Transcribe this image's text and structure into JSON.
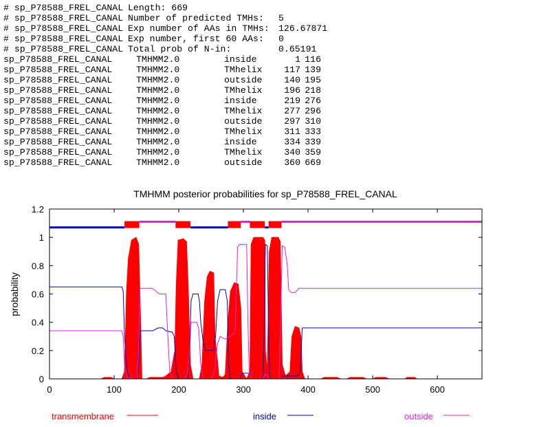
{
  "summary": [
    {
      "prefix": "# sp_P78588_FREL_CANAL",
      "label": "Length: 669",
      "value": ""
    },
    {
      "prefix": "# sp_P78588_FREL_CANAL",
      "label": "Number of predicted TMHs:",
      "value": "5"
    },
    {
      "prefix": "# sp_P78588_FREL_CANAL",
      "label": "Exp number of AAs in TMHs:",
      "value": "126.67871"
    },
    {
      "prefix": "# sp_P78588_FREL_CANAL",
      "label": "Exp number, first 60 AAs:",
      "value": "0"
    },
    {
      "prefix": "# sp_P78588_FREL_CANAL",
      "label": "Total prob of N-in:",
      "value": "0.65191"
    }
  ],
  "rows": [
    [
      "sp_P78588_FREL_CANAL",
      "TMHMM2.0",
      "inside",
      "1",
      "116"
    ],
    [
      "sp_P78588_FREL_CANAL",
      "TMHMM2.0",
      "TMhelix",
      "117",
      "139"
    ],
    [
      "sp_P78588_FREL_CANAL",
      "TMHMM2.0",
      "outside",
      "140",
      "195"
    ],
    [
      "sp_P78588_FREL_CANAL",
      "TMHMM2.0",
      "TMhelix",
      "196",
      "218"
    ],
    [
      "sp_P78588_FREL_CANAL",
      "TMHMM2.0",
      "inside",
      "219",
      "276"
    ],
    [
      "sp_P78588_FREL_CANAL",
      "TMHMM2.0",
      "TMhelix",
      "277",
      "296"
    ],
    [
      "sp_P78588_FREL_CANAL",
      "TMHMM2.0",
      "outside",
      "297",
      "310"
    ],
    [
      "sp_P78588_FREL_CANAL",
      "TMHMM2.0",
      "TMhelix",
      "311",
      "333"
    ],
    [
      "sp_P78588_FREL_CANAL",
      "TMHMM2.0",
      "inside",
      "334",
      "339"
    ],
    [
      "sp_P78588_FREL_CANAL",
      "TMHMM2.0",
      "TMhelix",
      "340",
      "359"
    ],
    [
      "sp_P78588_FREL_CANAL",
      "TMHMM2.0",
      "outside",
      "360",
      "669"
    ]
  ],
  "chart_data": {
    "type": "line",
    "title": "TMHMM posterior probabilities for sp_P78588_FREL_CANAL",
    "xlabel": "",
    "ylabel": "probability",
    "xlim": [
      0,
      669
    ],
    "ylim": [
      0,
      1.2
    ],
    "xticks": [
      0,
      100,
      200,
      300,
      400,
      500,
      600
    ],
    "yticks": [
      0,
      0.2,
      0.4,
      0.6,
      0.8,
      1,
      1.2
    ],
    "ytick_labels": [
      "0",
      "0.2",
      "0.4",
      "0.6",
      "0.8",
      "1",
      "1.2"
    ],
    "colors": {
      "transmembrane": "#ff0000",
      "inside": "#0000c0",
      "outside": "#e020e0"
    },
    "legend": [
      {
        "name": "transmembrane",
        "color": "#ff0000"
      },
      {
        "name": "inside",
        "color": "#0000c0"
      },
      {
        "name": "outside",
        "color": "#e020e0"
      }
    ],
    "legend_placement": "bottom",
    "series": [
      {
        "name": "transmembrane",
        "fill": true,
        "points": [
          [
            0,
            0
          ],
          [
            80,
            0
          ],
          [
            85,
            0.01
          ],
          [
            95,
            0.01
          ],
          [
            100,
            0
          ],
          [
            112,
            0
          ],
          [
            116,
            0.05
          ],
          [
            119,
            0.6
          ],
          [
            122,
            0.85
          ],
          [
            127,
            0.98
          ],
          [
            134,
            1
          ],
          [
            138,
            0.95
          ],
          [
            141,
            0.4
          ],
          [
            143,
            0
          ],
          [
            150,
            0
          ],
          [
            155,
            0.01
          ],
          [
            175,
            0.01
          ],
          [
            180,
            0.02
          ],
          [
            188,
            0.05
          ],
          [
            194,
            0.2
          ],
          [
            196,
            0.65
          ],
          [
            199,
            0.98
          ],
          [
            207,
            0.99
          ],
          [
            212,
            0.97
          ],
          [
            215,
            0.6
          ],
          [
            218,
            0.1
          ],
          [
            222,
            0
          ],
          [
            232,
            0
          ],
          [
            236,
            0.1
          ],
          [
            240,
            0.55
          ],
          [
            244,
            0.72
          ],
          [
            248,
            0.76
          ],
          [
            254,
            0.75
          ],
          [
            256,
            0.3
          ],
          [
            260,
            0.12
          ],
          [
            262,
            0.02
          ],
          [
            268,
            0.01
          ],
          [
            272,
            0.03
          ],
          [
            276,
            0.4
          ],
          [
            280,
            0.62
          ],
          [
            286,
            0.68
          ],
          [
            292,
            0.67
          ],
          [
            296,
            0.5
          ],
          [
            298,
            0.05
          ],
          [
            305,
            0
          ],
          [
            310,
            0.05
          ],
          [
            312,
            0.95
          ],
          [
            316,
            1
          ],
          [
            330,
            1
          ],
          [
            333,
            0.98
          ],
          [
            334,
            0.2
          ],
          [
            337,
            0.05
          ],
          [
            340,
            0.9
          ],
          [
            344,
            1
          ],
          [
            354,
            1
          ],
          [
            357,
            0.97
          ],
          [
            360,
            0.1
          ],
          [
            365,
            0.02
          ],
          [
            372,
            0.05
          ],
          [
            375,
            0.3
          ],
          [
            380,
            0.37
          ],
          [
            386,
            0.36
          ],
          [
            389,
            0.3
          ],
          [
            391,
            0.05
          ],
          [
            395,
            0
          ],
          [
            420,
            0
          ],
          [
            425,
            0.01
          ],
          [
            445,
            0.01
          ],
          [
            450,
            0
          ],
          [
            460,
            0
          ],
          [
            465,
            0.01
          ],
          [
            485,
            0.01
          ],
          [
            490,
            0
          ],
          [
            500,
            0
          ],
          [
            505,
            0.01
          ],
          [
            520,
            0.01
          ],
          [
            525,
            0
          ],
          [
            550,
            0
          ],
          [
            553,
            0.01
          ],
          [
            565,
            0.01
          ],
          [
            568,
            0
          ],
          [
            669,
            0
          ]
        ]
      },
      {
        "name": "inside",
        "points": [
          [
            0,
            0.65
          ],
          [
            112,
            0.65
          ],
          [
            114,
            0.62
          ],
          [
            116,
            0.3
          ],
          [
            120,
            0.05
          ],
          [
            124,
            0
          ],
          [
            135,
            0
          ],
          [
            138,
            0.1
          ],
          [
            140,
            0.34
          ],
          [
            160,
            0.34
          ],
          [
            168,
            0.36
          ],
          [
            175,
            0.36
          ],
          [
            180,
            0.34
          ],
          [
            190,
            0.33
          ],
          [
            193,
            0.3
          ],
          [
            196,
            0.05
          ],
          [
            200,
            0
          ],
          [
            214,
            0
          ],
          [
            217,
            0.2
          ],
          [
            219,
            0.55
          ],
          [
            222,
            0.6
          ],
          [
            230,
            0.6
          ],
          [
            232,
            0.55
          ],
          [
            234,
            0.4
          ],
          [
            238,
            0.25
          ],
          [
            242,
            0.2
          ],
          [
            254,
            0.2
          ],
          [
            257,
            0.3
          ],
          [
            260,
            0.55
          ],
          [
            264,
            0.63
          ],
          [
            272,
            0.63
          ],
          [
            275,
            0.55
          ],
          [
            277,
            0.1
          ],
          [
            280,
            0
          ],
          [
            295,
            0
          ],
          [
            298,
            0.04
          ],
          [
            310,
            0.04
          ],
          [
            312,
            0
          ],
          [
            330,
            0
          ],
          [
            332,
            0.3
          ],
          [
            334,
            0.95
          ],
          [
            337,
            0.94
          ],
          [
            339,
            0.3
          ],
          [
            341,
            0
          ],
          [
            358,
            0
          ],
          [
            360,
            0.02
          ],
          [
            384,
            0.02
          ],
          [
            388,
            0.05
          ],
          [
            391,
            0.36
          ],
          [
            669,
            0.36
          ]
        ]
      },
      {
        "name": "outside",
        "points": [
          [
            0,
            0.34
          ],
          [
            112,
            0.34
          ],
          [
            114,
            0.3
          ],
          [
            116,
            0.1
          ],
          [
            120,
            0.01
          ],
          [
            135,
            0
          ],
          [
            138,
            0.2
          ],
          [
            140,
            0.64
          ],
          [
            158,
            0.64
          ],
          [
            162,
            0.63
          ],
          [
            170,
            0.6
          ],
          [
            180,
            0.6
          ],
          [
            182,
            0.4
          ],
          [
            186,
            0.05
          ],
          [
            192,
            0
          ],
          [
            210,
            0
          ],
          [
            214,
            0.05
          ],
          [
            217,
            0.2
          ],
          [
            219,
            0.4
          ],
          [
            228,
            0.4
          ],
          [
            231,
            0.35
          ],
          [
            234,
            0.1
          ],
          [
            238,
            0
          ],
          [
            250,
            0
          ],
          [
            255,
            0.05
          ],
          [
            260,
            0.25
          ],
          [
            264,
            0.3
          ],
          [
            272,
            0.28
          ],
          [
            278,
            0.3
          ],
          [
            283,
            0.31
          ],
          [
            287,
            0.33
          ],
          [
            289,
            0.6
          ],
          [
            291,
            0.93
          ],
          [
            294,
            0.95
          ],
          [
            305,
            0.95
          ],
          [
            307,
            0.4
          ],
          [
            309,
            0.05
          ],
          [
            312,
            0
          ],
          [
            330,
            0
          ],
          [
            333,
            0.03
          ],
          [
            337,
            0.03
          ],
          [
            340,
            0
          ],
          [
            355,
            0
          ],
          [
            357,
            0.3
          ],
          [
            360,
            0.94
          ],
          [
            364,
            0.93
          ],
          [
            368,
            0.8
          ],
          [
            370,
            0.63
          ],
          [
            374,
            0.61
          ],
          [
            380,
            0.61
          ],
          [
            386,
            0.64
          ],
          [
            669,
            0.64
          ]
        ]
      }
    ],
    "topology_bars": {
      "inside_level": 1.07,
      "outside_level": 1.11,
      "tm_level": 1.09,
      "segments": [
        [
          "inside",
          1,
          116
        ],
        [
          "tm",
          117,
          139
        ],
        [
          "outside",
          140,
          195
        ],
        [
          "tm",
          196,
          218
        ],
        [
          "inside",
          219,
          276
        ],
        [
          "tm",
          277,
          296
        ],
        [
          "outside",
          297,
          310
        ],
        [
          "tm",
          311,
          333
        ],
        [
          "inside",
          334,
          339
        ],
        [
          "tm",
          340,
          359
        ],
        [
          "outside",
          360,
          669
        ]
      ]
    }
  }
}
